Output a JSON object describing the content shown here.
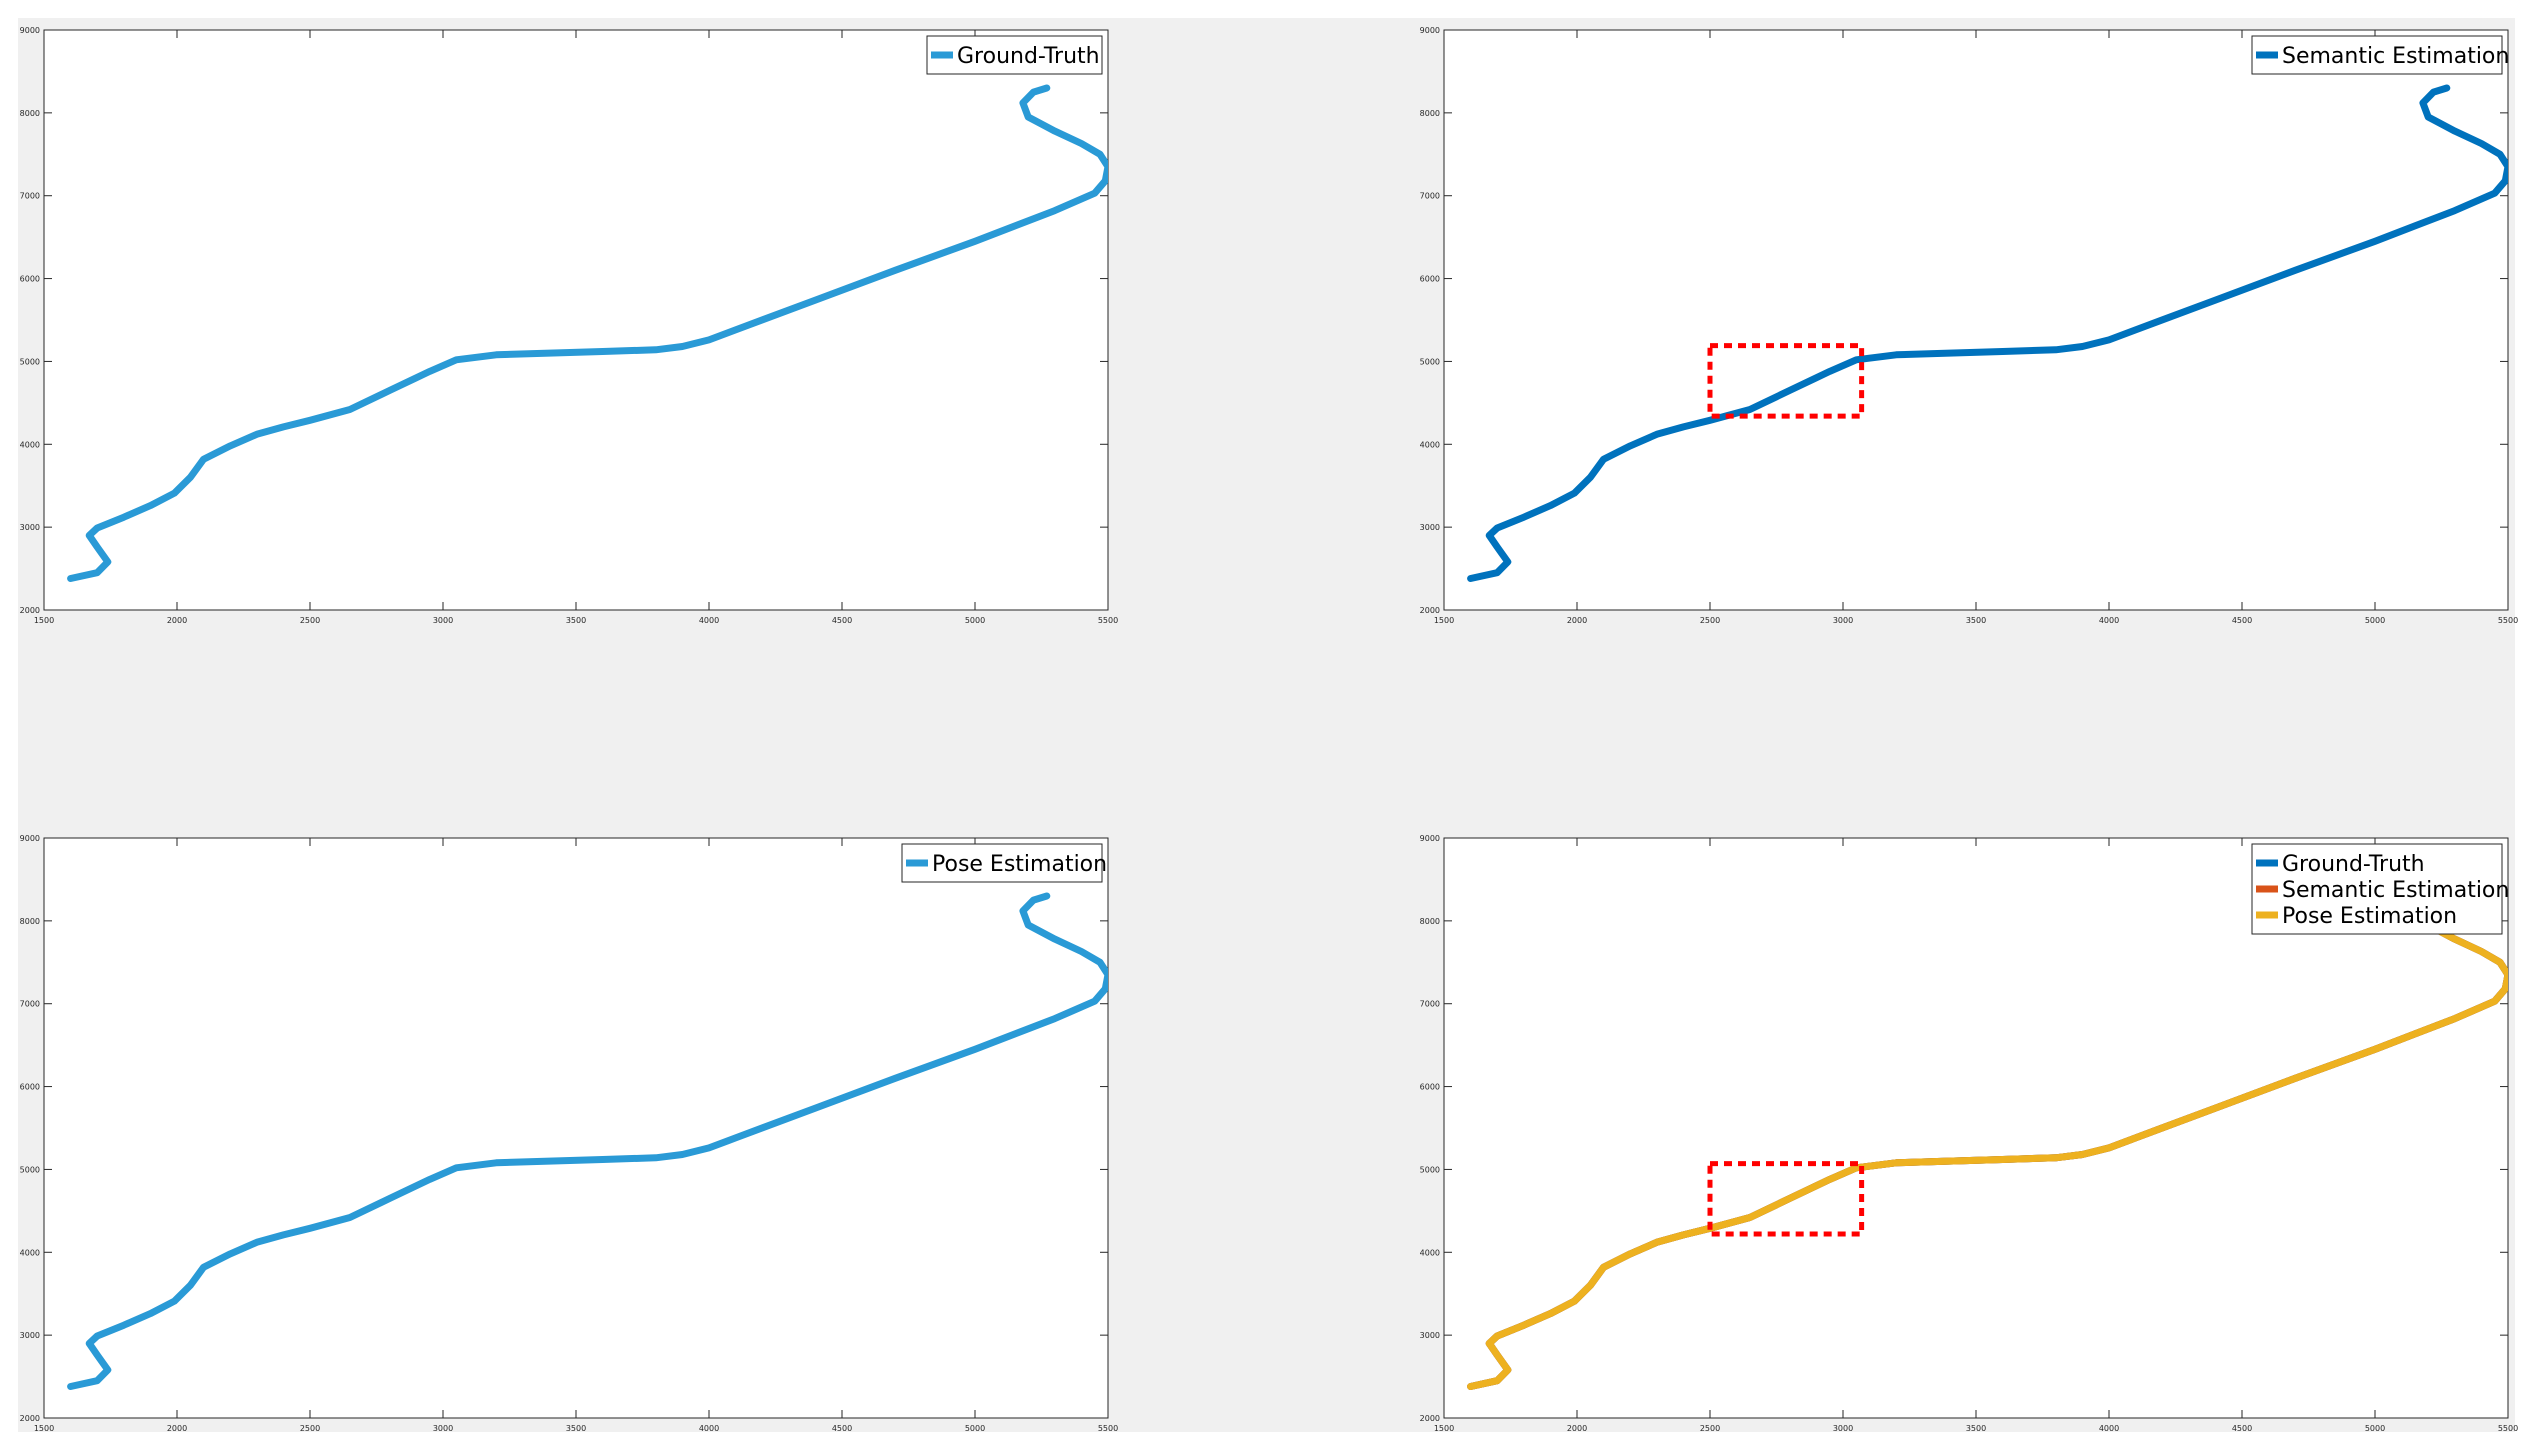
{
  "figure": {
    "background": "#f0f0f0"
  },
  "chart_data": [
    {
      "type": "line",
      "xlim": [
        1500,
        5500
      ],
      "ylim": [
        2000,
        9000
      ],
      "xticks": [
        "1500",
        "2000",
        "2500",
        "3000",
        "3500",
        "4000",
        "4500",
        "5000",
        "5500"
      ],
      "yticks": [
        "2000",
        "3000",
        "4000",
        "5000",
        "6000",
        "7000",
        "8000",
        "9000"
      ],
      "grid": false,
      "legend_location": "top-right",
      "series": [
        {
          "name": "Ground-Truth",
          "color": "#2a9ad6",
          "x": [
            1600,
            1700,
            1740,
            1700,
            1670,
            1700,
            1800,
            1900,
            1990,
            2050,
            2100,
            2200,
            2300,
            2400,
            2500,
            2650,
            2800,
            2950,
            3050,
            3200,
            3400,
            3600,
            3800,
            3900,
            4000,
            4100,
            4400,
            4700,
            5000,
            5300,
            5450,
            5490,
            5500,
            5470,
            5400,
            5300,
            5200,
            5180,
            5220,
            5270
          ],
          "y": [
            2380,
            2450,
            2580,
            2760,
            2900,
            2990,
            3120,
            3260,
            3410,
            3600,
            3820,
            3980,
            4120,
            4210,
            4290,
            4420,
            4650,
            4880,
            5020,
            5080,
            5100,
            5120,
            5140,
            5180,
            5260,
            5380,
            5740,
            6100,
            6450,
            6820,
            7030,
            7180,
            7350,
            7500,
            7630,
            7780,
            7950,
            8120,
            8250,
            8300
          ]
        }
      ]
    },
    {
      "type": "line",
      "xlim": [
        1500,
        5500
      ],
      "ylim": [
        2000,
        9000
      ],
      "xticks": [
        "1500",
        "2000",
        "2500",
        "3000",
        "3500",
        "4000",
        "4500",
        "5000",
        "5500"
      ],
      "yticks": [
        "2000",
        "3000",
        "4000",
        "5000",
        "6000",
        "7000",
        "8000",
        "9000"
      ],
      "grid": false,
      "legend_location": "top-right",
      "annotation": {
        "type": "dashed-rectangle",
        "color": "#ff0000",
        "x": [
          2500,
          3070
        ],
        "y": [
          4340,
          5190
        ]
      },
      "series": [
        {
          "name": "Semantic Estimation",
          "color": "#0072bd",
          "x": [
            1600,
            1700,
            1740,
            1700,
            1670,
            1700,
            1800,
            1900,
            1990,
            2050,
            2100,
            2200,
            2300,
            2400,
            2500,
            2650,
            2800,
            2950,
            3050,
            3200,
            3400,
            3600,
            3800,
            3900,
            4000,
            4100,
            4400,
            4700,
            5000,
            5300,
            5450,
            5490,
            5500,
            5470,
            5400,
            5300,
            5200,
            5180,
            5220,
            5270
          ],
          "y": [
            2380,
            2450,
            2580,
            2760,
            2900,
            2990,
            3120,
            3260,
            3410,
            3600,
            3820,
            3980,
            4120,
            4210,
            4290,
            4420,
            4650,
            4880,
            5020,
            5080,
            5100,
            5120,
            5140,
            5180,
            5260,
            5380,
            5740,
            6100,
            6450,
            6820,
            7030,
            7180,
            7350,
            7500,
            7630,
            7780,
            7950,
            8120,
            8250,
            8300
          ]
        }
      ]
    },
    {
      "type": "line",
      "xlim": [
        1500,
        5500
      ],
      "ylim": [
        2000,
        9000
      ],
      "xticks": [
        "1500",
        "2000",
        "2500",
        "3000",
        "3500",
        "4000",
        "4500",
        "5000",
        "5500"
      ],
      "yticks": [
        "2000",
        "3000",
        "4000",
        "5000",
        "6000",
        "7000",
        "8000",
        "9000"
      ],
      "grid": false,
      "legend_location": "top-right",
      "series": [
        {
          "name": "Pose Estimation",
          "color": "#2a9ad6",
          "x": [
            1600,
            1700,
            1740,
            1700,
            1670,
            1700,
            1800,
            1900,
            1990,
            2050,
            2100,
            2200,
            2300,
            2400,
            2500,
            2650,
            2800,
            2950,
            3050,
            3200,
            3400,
            3600,
            3800,
            3900,
            4000,
            4100,
            4400,
            4700,
            5000,
            5300,
            5450,
            5490,
            5500,
            5470,
            5400,
            5300,
            5200,
            5180,
            5220,
            5270
          ],
          "y": [
            2380,
            2450,
            2580,
            2760,
            2900,
            2990,
            3120,
            3260,
            3410,
            3600,
            3820,
            3980,
            4120,
            4210,
            4290,
            4420,
            4650,
            4880,
            5020,
            5080,
            5100,
            5120,
            5140,
            5180,
            5260,
            5380,
            5740,
            6100,
            6450,
            6820,
            7030,
            7180,
            7350,
            7500,
            7630,
            7780,
            7950,
            8120,
            8250,
            8300
          ]
        }
      ]
    },
    {
      "type": "line",
      "xlim": [
        1500,
        5500
      ],
      "ylim": [
        2000,
        9000
      ],
      "xticks": [
        "1500",
        "2000",
        "2500",
        "3000",
        "3500",
        "4000",
        "4500",
        "5000",
        "5500"
      ],
      "yticks": [
        "2000",
        "3000",
        "4000",
        "5000",
        "6000",
        "7000",
        "8000",
        "9000"
      ],
      "grid": false,
      "legend_location": "top-right",
      "annotation": {
        "type": "dashed-rectangle",
        "color": "#ff0000",
        "x": [
          2500,
          3070
        ],
        "y": [
          4220,
          5070
        ]
      },
      "series": [
        {
          "name": "Ground-Truth",
          "color": "#0072bd",
          "x": [
            1600,
            1700,
            1740,
            1700,
            1670,
            1700,
            1800,
            1900,
            1990,
            2050,
            2100,
            2200,
            2300,
            2400,
            2500,
            2650,
            2800,
            2950,
            3050,
            3200,
            3400,
            3600,
            3800,
            3900,
            4000,
            4100,
            4400,
            4700,
            5000,
            5300,
            5450,
            5490,
            5500,
            5470,
            5400,
            5300,
            5200,
            5180,
            5220,
            5270
          ],
          "y": [
            2380,
            2450,
            2580,
            2760,
            2900,
            2990,
            3120,
            3260,
            3410,
            3600,
            3820,
            3980,
            4120,
            4210,
            4290,
            4420,
            4650,
            4880,
            5020,
            5080,
            5100,
            5120,
            5140,
            5180,
            5260,
            5380,
            5740,
            6100,
            6450,
            6820,
            7030,
            7180,
            7350,
            7500,
            7630,
            7780,
            7950,
            8120,
            8250,
            8300
          ]
        },
        {
          "name": "Semantic Estimation",
          "color": "#d95319",
          "x": [
            1600,
            1700,
            1740,
            1700,
            1670,
            1700,
            1800,
            1900,
            1990,
            2050,
            2100,
            2200,
            2300,
            2400,
            2500,
            2650,
            2800,
            2950,
            3050,
            3200,
            3400,
            3600,
            3800,
            3900,
            4000,
            4100,
            4400,
            4700,
            5000,
            5300,
            5450,
            5490,
            5500,
            5470,
            5400,
            5300,
            5200,
            5180,
            5220,
            5270
          ],
          "y": [
            2380,
            2450,
            2580,
            2760,
            2900,
            2990,
            3120,
            3260,
            3410,
            3600,
            3820,
            3980,
            4120,
            4210,
            4290,
            4420,
            4650,
            4880,
            5020,
            5080,
            5100,
            5120,
            5140,
            5180,
            5260,
            5380,
            5740,
            6100,
            6450,
            6820,
            7030,
            7180,
            7350,
            7500,
            7630,
            7780,
            7950,
            8120,
            8250,
            8300
          ]
        },
        {
          "name": "Pose Estimation",
          "color": "#edb120",
          "x": [
            1600,
            1700,
            1740,
            1700,
            1670,
            1700,
            1800,
            1900,
            1990,
            2050,
            2100,
            2200,
            2300,
            2400,
            2500,
            2650,
            2800,
            2950,
            3050,
            3200,
            3400,
            3600,
            3800,
            3900,
            4000,
            4100,
            4400,
            4700,
            5000,
            5300,
            5450,
            5490,
            5500,
            5470,
            5400,
            5300,
            5200,
            5180,
            5220,
            5270
          ],
          "y": [
            2380,
            2450,
            2580,
            2760,
            2900,
            2990,
            3120,
            3260,
            3410,
            3600,
            3820,
            3980,
            4120,
            4210,
            4290,
            4420,
            4650,
            4880,
            5020,
            5080,
            5100,
            5120,
            5140,
            5180,
            5260,
            5380,
            5740,
            6100,
            6450,
            6820,
            7030,
            7180,
            7350,
            7500,
            7630,
            7780,
            7950,
            8120,
            8250,
            8300
          ]
        }
      ]
    }
  ]
}
